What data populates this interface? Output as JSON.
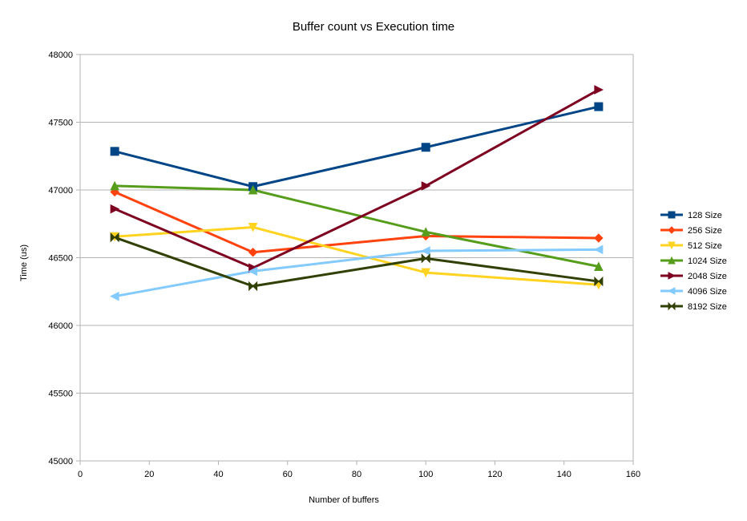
{
  "chart_data": {
    "type": "line",
    "title": "Buffer count vs Execution time",
    "xlabel": "Number of buffers",
    "ylabel": "Time (us)",
    "xlim": [
      0,
      160
    ],
    "ylim": [
      45000,
      48000
    ],
    "xticks": [
      0,
      20,
      40,
      60,
      80,
      100,
      120,
      140,
      160
    ],
    "yticks": [
      45000,
      45500,
      46000,
      46500,
      47000,
      47500,
      48000
    ],
    "grid": true,
    "legend_position": "right",
    "x": [
      10,
      50,
      100,
      150
    ],
    "series": [
      {
        "name": "128 Size",
        "color": "#004586",
        "marker": "square",
        "values": [
          47285,
          47025,
          47315,
          47615
        ]
      },
      {
        "name": "256 Size",
        "color": "#ff420e",
        "marker": "diamond",
        "values": [
          46985,
          46540,
          46660,
          46645
        ]
      },
      {
        "name": "512 Size",
        "color": "#ffd320",
        "marker": "triangle-down",
        "values": [
          46655,
          46725,
          46390,
          46300
        ]
      },
      {
        "name": "1024 Size",
        "color": "#579d1c",
        "marker": "triangle-up",
        "values": [
          47030,
          47000,
          46690,
          46435
        ]
      },
      {
        "name": "2048 Size",
        "color": "#7e0021",
        "marker": "triangle-right",
        "values": [
          46860,
          46425,
          47030,
          47740
        ]
      },
      {
        "name": "4096 Size",
        "color": "#83caff",
        "marker": "triangle-left",
        "values": [
          46215,
          46400,
          46550,
          46560
        ]
      },
      {
        "name": "8192 Size",
        "color": "#314004",
        "marker": "bowtie",
        "values": [
          46650,
          46290,
          46495,
          46325
        ]
      }
    ]
  }
}
